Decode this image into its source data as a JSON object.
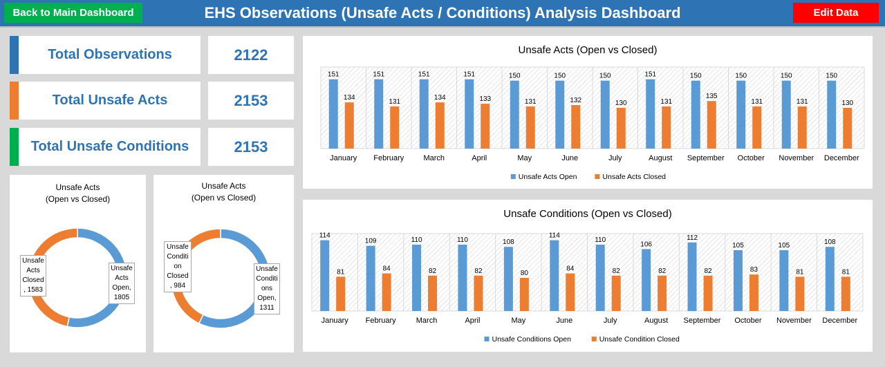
{
  "header": {
    "back_label": "Back to Main Dashboard",
    "title": "EHS Observations (Unsafe Acts / Conditions) Analysis Dashboard",
    "edit_label": "Edit Data"
  },
  "kpis": [
    {
      "label": "Total Observations",
      "value": "2122",
      "color": "#2e74b5"
    },
    {
      "label": "Total Unsafe Acts",
      "value": "2153",
      "color": "#ed7d31"
    },
    {
      "label": "Total Unsafe Conditions",
      "value": "2153",
      "color": "#00b050"
    }
  ],
  "colors": {
    "open": "#5b9bd5",
    "closed": "#ed7d31"
  },
  "donuts": [
    {
      "title_line1": "Unsafe Acts",
      "title_line2": "(Open vs Closed)",
      "open_value": 1805,
      "closed_value": 1583,
      "closed_callout": [
        "Unsafe",
        "Acts",
        "Closed",
        ", 1583"
      ],
      "open_callout": [
        "Unsafe",
        "Acts",
        "Open,",
        "1805"
      ]
    },
    {
      "title_line1": "Unsafe Acts",
      "title_line2": "(Open vs Closed)",
      "open_value": 1311,
      "closed_value": 984,
      "closed_callout": [
        "Unsafe",
        "Conditi",
        "on",
        "Closed",
        ", 984"
      ],
      "open_callout": [
        "Unsafe",
        "Conditi",
        "ons",
        "Open,",
        "1311"
      ]
    }
  ],
  "chart_data": [
    {
      "type": "bar",
      "title": "Unsafe Acts (Open vs Closed)",
      "categories": [
        "January",
        "February",
        "March",
        "April",
        "May",
        "June",
        "July",
        "August",
        "September",
        "October",
        "November",
        "December"
      ],
      "series": [
        {
          "name": "Unsafe Acts Open",
          "values": [
            151,
            151,
            151,
            151,
            150,
            150,
            150,
            151,
            150,
            150,
            150,
            150
          ]
        },
        {
          "name": "Unsafe Acts Closed",
          "values": [
            134,
            131,
            134,
            133,
            131,
            132,
            130,
            131,
            135,
            131,
            131,
            130
          ]
        }
      ],
      "legend": "bottom"
    },
    {
      "type": "bar",
      "title": "Unsafe Conditions (Open vs Closed)",
      "categories": [
        "January",
        "February",
        "March",
        "April",
        "May",
        "June",
        "July",
        "August",
        "September",
        "October",
        "November",
        "December"
      ],
      "series": [
        {
          "name": "Unsafe Conditions Open",
          "values": [
            114,
            109,
            110,
            110,
            108,
            114,
            110,
            106,
            112,
            105,
            105,
            108
          ]
        },
        {
          "name": "Unsafe Condition Closed",
          "values": [
            81,
            84,
            82,
            82,
            80,
            84,
            82,
            82,
            82,
            83,
            81,
            81
          ]
        }
      ],
      "legend": "bottom"
    }
  ]
}
